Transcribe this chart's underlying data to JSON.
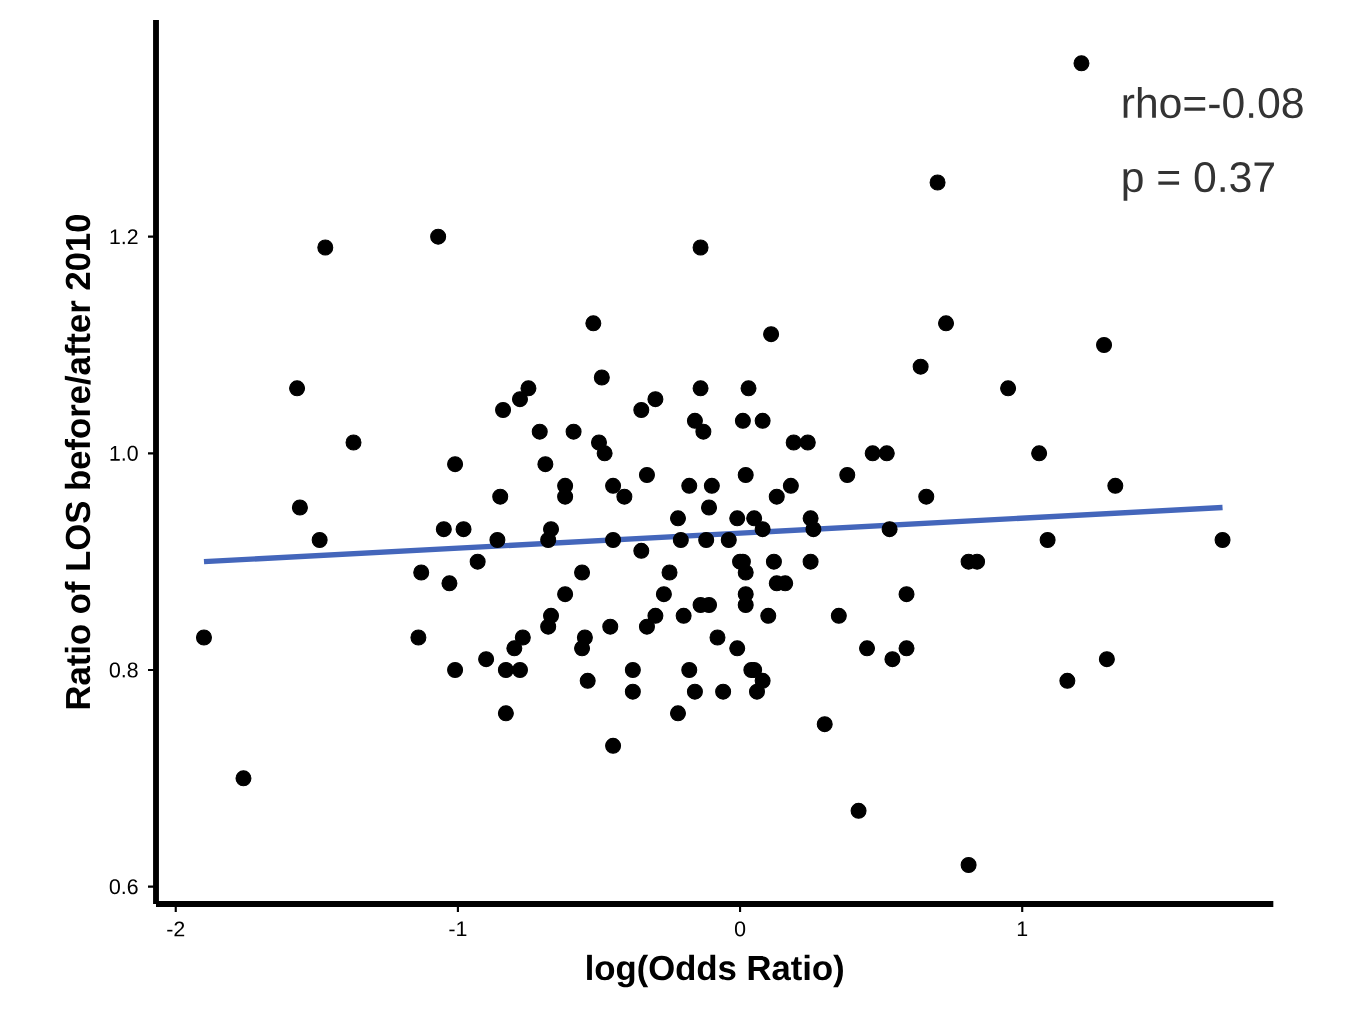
{
  "chart_data": {
    "type": "scatter",
    "xlabel": "log(Odds Ratio)",
    "ylabel": "Ratio of LOS before/after 2010",
    "annotations": [
      "rho=-0.08",
      "p = 0.37"
    ],
    "xlim": [
      -2.07,
      1.89
    ],
    "ylim": [
      0.584,
      1.4
    ],
    "xticks": [
      -2,
      -1,
      0,
      1
    ],
    "yticks": [
      0.6,
      0.8,
      {
        "value": 1.0,
        "label": "1.0"
      },
      1.2
    ],
    "grid": false,
    "marker": "circle",
    "series": [
      {
        "color": "#000000",
        "x": [
          -1.9,
          -1.76,
          -1.57,
          -1.56,
          -1.49,
          -1.47,
          -1.37,
          -1.07,
          -1.13,
          -1.03,
          -1.14,
          -1.01,
          -1.05,
          -0.98,
          -1.01,
          -0.93,
          -0.86,
          -0.85,
          -0.9,
          -0.83,
          -0.8,
          -0.77,
          -0.78,
          -0.83,
          -0.84,
          -0.78,
          -0.75,
          -0.71,
          -0.59,
          -0.69,
          -0.62,
          -0.62,
          -0.67,
          -0.68,
          -0.56,
          -0.62,
          -0.67,
          -0.68,
          -0.55,
          -0.56,
          -0.46,
          -0.54,
          -0.52,
          -0.49,
          -0.5,
          -0.48,
          -0.45,
          -0.41,
          -0.45,
          -0.35,
          -0.3,
          -0.33,
          -0.35,
          -0.25,
          -0.27,
          -0.3,
          -0.33,
          -0.2,
          -0.38,
          -0.38,
          -0.45,
          -0.18,
          -0.16,
          -0.22,
          -0.06,
          -0.08,
          -0.01,
          -0.14,
          -0.14,
          -0.16,
          -0.13,
          0.01,
          0.03,
          -0.18,
          -0.1,
          -0.22,
          -0.21,
          -0.12,
          -0.11,
          -0.04,
          -0.01,
          0.0,
          0.02,
          0.02,
          0.02,
          -0.14,
          -0.11,
          0.04,
          0.02,
          1.21,
          0.7,
          0.73,
          1.29,
          0.64,
          0.95,
          0.11,
          0.08,
          0.19,
          0.24,
          0.47,
          0.52,
          1.06,
          0.18,
          0.13,
          0.38,
          0.66,
          1.33,
          0.05,
          0.08,
          0.25,
          0.26,
          0.53,
          1.09,
          1.71,
          0.01,
          0.12,
          0.25,
          0.81,
          0.84,
          0.13,
          0.16,
          0.59,
          0.1,
          0.35,
          0.45,
          0.54,
          0.59,
          0.05,
          0.08,
          0.06,
          0.3,
          1.3,
          1.16,
          0.42,
          0.81
        ],
        "values": [
          0.83,
          0.7,
          1.06,
          0.95,
          0.92,
          1.19,
          1.01,
          1.2,
          0.89,
          0.88,
          0.83,
          0.8,
          0.93,
          0.93,
          0.99,
          0.9,
          0.92,
          0.96,
          0.81,
          0.8,
          0.82,
          0.83,
          0.8,
          0.76,
          1.04,
          1.05,
          1.06,
          1.02,
          1.02,
          0.99,
          0.97,
          0.96,
          0.93,
          0.92,
          0.89,
          0.87,
          0.85,
          0.84,
          0.83,
          0.82,
          0.84,
          0.79,
          1.12,
          1.07,
          1.01,
          1.0,
          0.97,
          0.96,
          0.92,
          1.04,
          1.05,
          0.98,
          0.91,
          0.89,
          0.87,
          0.85,
          0.84,
          0.85,
          0.8,
          0.78,
          0.73,
          0.8,
          0.78,
          0.76,
          0.78,
          0.83,
          0.82,
          1.19,
          1.06,
          1.03,
          1.02,
          1.03,
          1.06,
          0.97,
          0.97,
          0.94,
          0.92,
          0.92,
          0.95,
          0.92,
          0.94,
          0.9,
          0.89,
          0.87,
          0.86,
          0.86,
          0.86,
          0.8,
          0.98,
          1.36,
          1.25,
          1.12,
          1.1,
          1.08,
          1.06,
          1.11,
          1.03,
          1.01,
          1.01,
          1.0,
          1.0,
          1.0,
          0.97,
          0.96,
          0.98,
          0.96,
          0.97,
          0.94,
          0.93,
          0.94,
          0.93,
          0.93,
          0.92,
          0.92,
          0.9,
          0.9,
          0.9,
          0.9,
          0.9,
          0.88,
          0.88,
          0.87,
          0.85,
          0.85,
          0.82,
          0.81,
          0.82,
          0.8,
          0.79,
          0.78,
          0.75,
          0.81,
          0.79,
          0.67,
          0.62
        ]
      },
      {
        "type": "line",
        "color": "#4466bb",
        "marker": "none",
        "line_style": "solid",
        "x": [
          -1.9,
          1.71
        ],
        "values": [
          0.9,
          0.95
        ]
      }
    ]
  }
}
